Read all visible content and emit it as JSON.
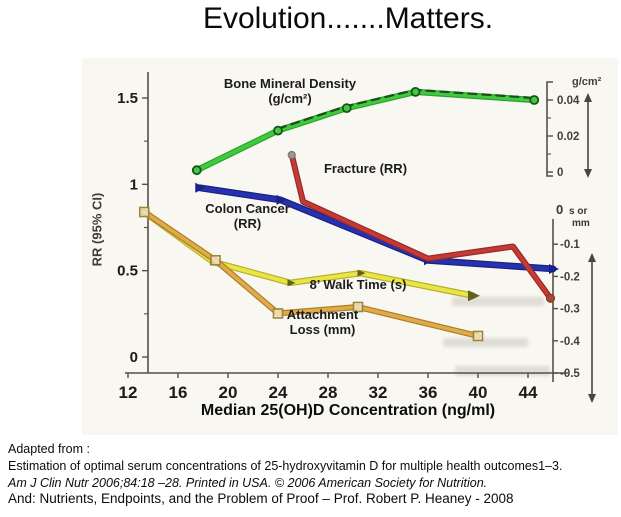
{
  "slide": {
    "title": "Evolution.......Matters.",
    "footer": {
      "line1": "Adapted from :",
      "line2": "Estimation of optimal serum concentrations of 25-hydroxyvitamin D for multiple health outcomes1–3.",
      "line3": "Am J Clin Nutr 2006;84:18 –28. Printed in USA. © 2006 American Society for Nutrition.",
      "line4": "And: Nutrients, Endpoints, and the Problem of Proof – Prof. Robert P. Heaney - 2008"
    }
  },
  "chart_data": {
    "type": "line",
    "title": "",
    "xlabel": "Median 25(OH)D Concentration (ng/ml)",
    "x_ticks": [
      12,
      16,
      20,
      24,
      28,
      32,
      36,
      40,
      44
    ],
    "x_range": [
      10.5,
      46
    ],
    "grid": false,
    "legend_position": "inline-annotations",
    "axes": {
      "left": {
        "label": "RR (95% CI)",
        "tick_labels": [
          "0",
          "0.5",
          "1",
          "1.5"
        ],
        "tick_values": [
          0,
          0.5,
          1,
          1.5
        ],
        "range": [
          0,
          1.65
        ]
      },
      "right_top": {
        "label": "g/cm²",
        "tick_labels": [
          "0",
          "0.02",
          "0.04"
        ],
        "tick_values": [
          0,
          0.02,
          0.04
        ],
        "minor_ticks": [
          0.01,
          0.03
        ],
        "range": [
          0,
          0.05
        ]
      },
      "right_bottom": {
        "label_zero": "0",
        "label_units_1": "s or",
        "label_units_2": "mm",
        "tick_labels": [
          "-0.1",
          "-0.2",
          "-0.3",
          "-0.4",
          "-0.5"
        ],
        "tick_values": [
          -0.1,
          -0.2,
          -0.3,
          -0.4,
          -0.5
        ],
        "range": [
          -0.52,
          0
        ]
      }
    },
    "series": [
      {
        "name": "Bone Mineral Density (g/cm²)",
        "axis": "right_top",
        "color": "#3fca3f",
        "underlay": "#2ba32b",
        "width": 3.8,
        "marker": "circle",
        "marker_color": "#17541a",
        "dashed_overlay": true,
        "overlay_color": "#1d4f1d",
        "x": [
          17.5,
          24,
          29.5,
          35,
          44.5
        ],
        "y": [
          0.001,
          0.023,
          0.0355,
          0.0445,
          0.04
        ]
      },
      {
        "name": "Colon Cancer (RR)",
        "axis": "left",
        "color": "#2531ae",
        "underlay": "#19227e",
        "width": 4.4,
        "marker": "triangle",
        "marker_color": "#18228f",
        "dashed_overlay": false,
        "x": [
          17.7,
          24.2,
          36,
          46
        ],
        "y": [
          0.98,
          0.91,
          0.56,
          0.51
        ]
      },
      {
        "name": "Fracture (RR)",
        "axis": "left",
        "color": "#c43b36",
        "underlay": "#992a28",
        "width": 3.6,
        "marker": "dots-ends",
        "marker_color": "#a34a32",
        "dashed_overlay": false,
        "x": [
          25.1,
          26,
          36,
          42.8,
          45.8
        ],
        "y": [
          1.17,
          0.9,
          0.57,
          0.64,
          0.34
        ]
      },
      {
        "name": "8’ Walk Time (s)",
        "axis": "right_bottom",
        "color": "#e9e447",
        "underlay": "#b9b12a",
        "width": 4,
        "marker": "arrow",
        "marker_color": "#60601c",
        "dashed_overlay": false,
        "x": [
          13.3,
          18.8,
          25,
          30.6,
          39.6
        ],
        "y": [
          0,
          -0.155,
          -0.22,
          -0.19,
          -0.26
        ]
      },
      {
        "name": "Attachment Loss (mm)",
        "axis": "right_bottom",
        "color": "#e0ab4a",
        "underlay": "#ad7f26",
        "width": 3.6,
        "marker": "square",
        "marker_color": "#99863f",
        "dashed_overlay": false,
        "x": [
          13.3,
          19,
          24,
          30.4,
          40
        ],
        "y": [
          0,
          -0.15,
          -0.315,
          -0.295,
          -0.385
        ]
      }
    ],
    "annotations": [
      {
        "id": "bmd",
        "lines": [
          "Bone Mineral Density",
          "(g/cm²)"
        ]
      },
      {
        "id": "fracture",
        "lines": [
          "Fracture (RR)",
          ""
        ]
      },
      {
        "id": "colon",
        "lines": [
          "Colon Cancer",
          "(RR)"
        ]
      },
      {
        "id": "walk",
        "lines": [
          "8’ Walk Time (s)",
          ""
        ]
      },
      {
        "id": "attach",
        "lines": [
          "Attachment",
          "Loss (mm)"
        ]
      }
    ],
    "colors": {
      "axis": "#574e46",
      "tick_text_small": "#453e37",
      "tick_text_bold": "#1c1917"
    }
  }
}
